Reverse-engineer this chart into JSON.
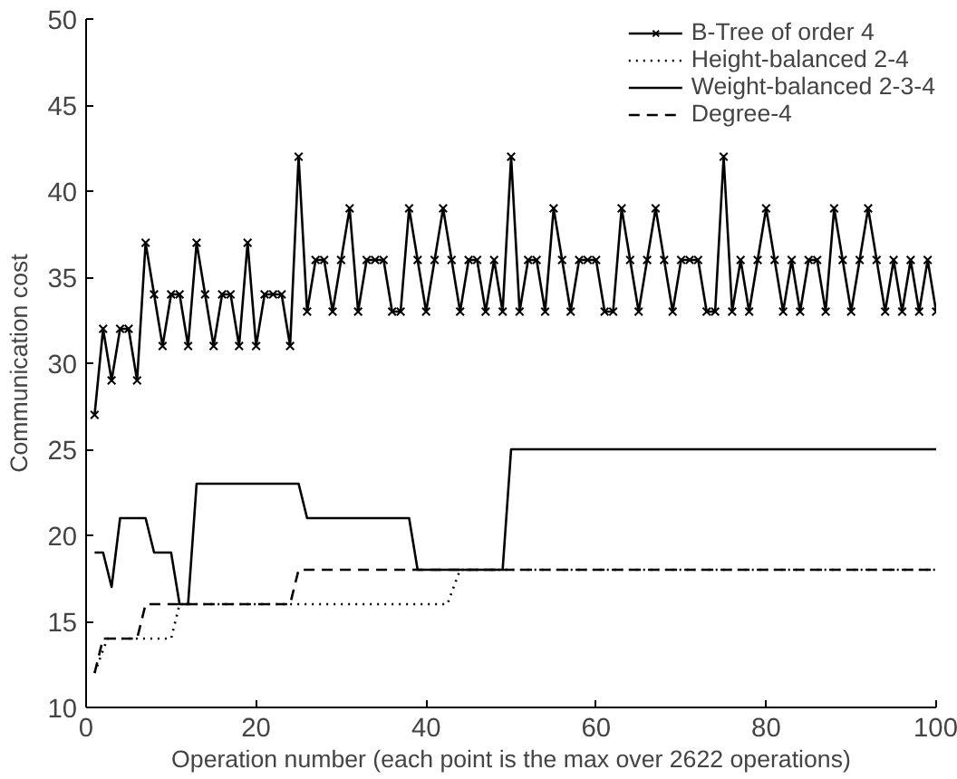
{
  "chart_data": {
    "type": "line",
    "xlabel": "Operation number (each point is the max over 2622 operations)",
    "ylabel": "Communication cost",
    "xlim": [
      0,
      100
    ],
    "ylim": [
      10,
      50
    ],
    "xticks": [
      0,
      20,
      40,
      60,
      80,
      100
    ],
    "yticks": [
      10,
      15,
      20,
      25,
      30,
      35,
      40,
      45,
      50
    ],
    "grid": false,
    "legend": "top right",
    "series": [
      {
        "name": "B-Tree of order 4",
        "color": "#000000",
        "marker": "cross",
        "line_style": "solid",
        "x": [
          1,
          2,
          3,
          4,
          5,
          6,
          7,
          8,
          9,
          10,
          11,
          12,
          13,
          14,
          15,
          16,
          17,
          18,
          19,
          20,
          21,
          22,
          23,
          24,
          25,
          26,
          27,
          28,
          29,
          30,
          31,
          32,
          33,
          34,
          35,
          36,
          37,
          38,
          39,
          40,
          41,
          42,
          43,
          44,
          45,
          46,
          47,
          48,
          49,
          50,
          51,
          52,
          53,
          54,
          55,
          56,
          57,
          58,
          59,
          60,
          61,
          62,
          63,
          64,
          65,
          66,
          67,
          68,
          69,
          70,
          71,
          72,
          73,
          74,
          75,
          76,
          77,
          78,
          79,
          80,
          81,
          82,
          83,
          84,
          85,
          86,
          87,
          88,
          89,
          90,
          91,
          92,
          93,
          94,
          95,
          96,
          97,
          98,
          99,
          100
        ],
        "values": [
          27,
          32,
          29,
          32,
          32,
          29,
          37,
          34,
          31,
          34,
          34,
          31,
          37,
          34,
          31,
          34,
          34,
          31,
          37,
          31,
          34,
          34,
          34,
          31,
          42,
          33,
          36,
          36,
          33,
          36,
          39,
          33,
          36,
          36,
          36,
          33,
          33,
          39,
          36,
          33,
          36,
          39,
          36,
          33,
          36,
          36,
          33,
          36,
          33,
          42,
          33,
          36,
          36,
          33,
          39,
          36,
          33,
          36,
          36,
          36,
          33,
          33,
          39,
          36,
          33,
          36,
          39,
          36,
          33,
          36,
          36,
          36,
          33,
          33,
          42,
          33,
          36,
          33,
          36,
          39,
          36,
          33,
          36,
          33,
          36,
          36,
          33,
          39,
          36,
          33,
          36,
          39,
          36,
          33,
          36,
          33,
          36,
          33,
          36,
          33
        ]
      },
      {
        "name": "Height-balanced 2-4",
        "color": "#000000",
        "marker": "none",
        "line_style": "dotted",
        "x": [
          1,
          2.5,
          10,
          11,
          42.5,
          44,
          100
        ],
        "values": [
          12,
          14,
          14,
          16,
          16,
          18,
          18
        ]
      },
      {
        "name": "Weight-balanced 2-3-4",
        "color": "#000000",
        "marker": "none",
        "line_style": "solid",
        "x": [
          1,
          2,
          3,
          4,
          7,
          8,
          10,
          11,
          12,
          13,
          25,
          26,
          38,
          39,
          49,
          50,
          100
        ],
        "values": [
          19,
          19,
          17,
          21,
          21,
          19,
          19,
          16,
          16,
          23,
          23,
          21,
          21,
          18,
          18,
          25,
          25
        ]
      },
      {
        "name": "Degree-4",
        "color": "#000000",
        "marker": "none",
        "line_style": "dashed",
        "x": [
          1,
          2,
          6,
          7,
          24,
          25,
          100
        ],
        "values": [
          12,
          14,
          14,
          16,
          16,
          18,
          18
        ]
      }
    ]
  }
}
